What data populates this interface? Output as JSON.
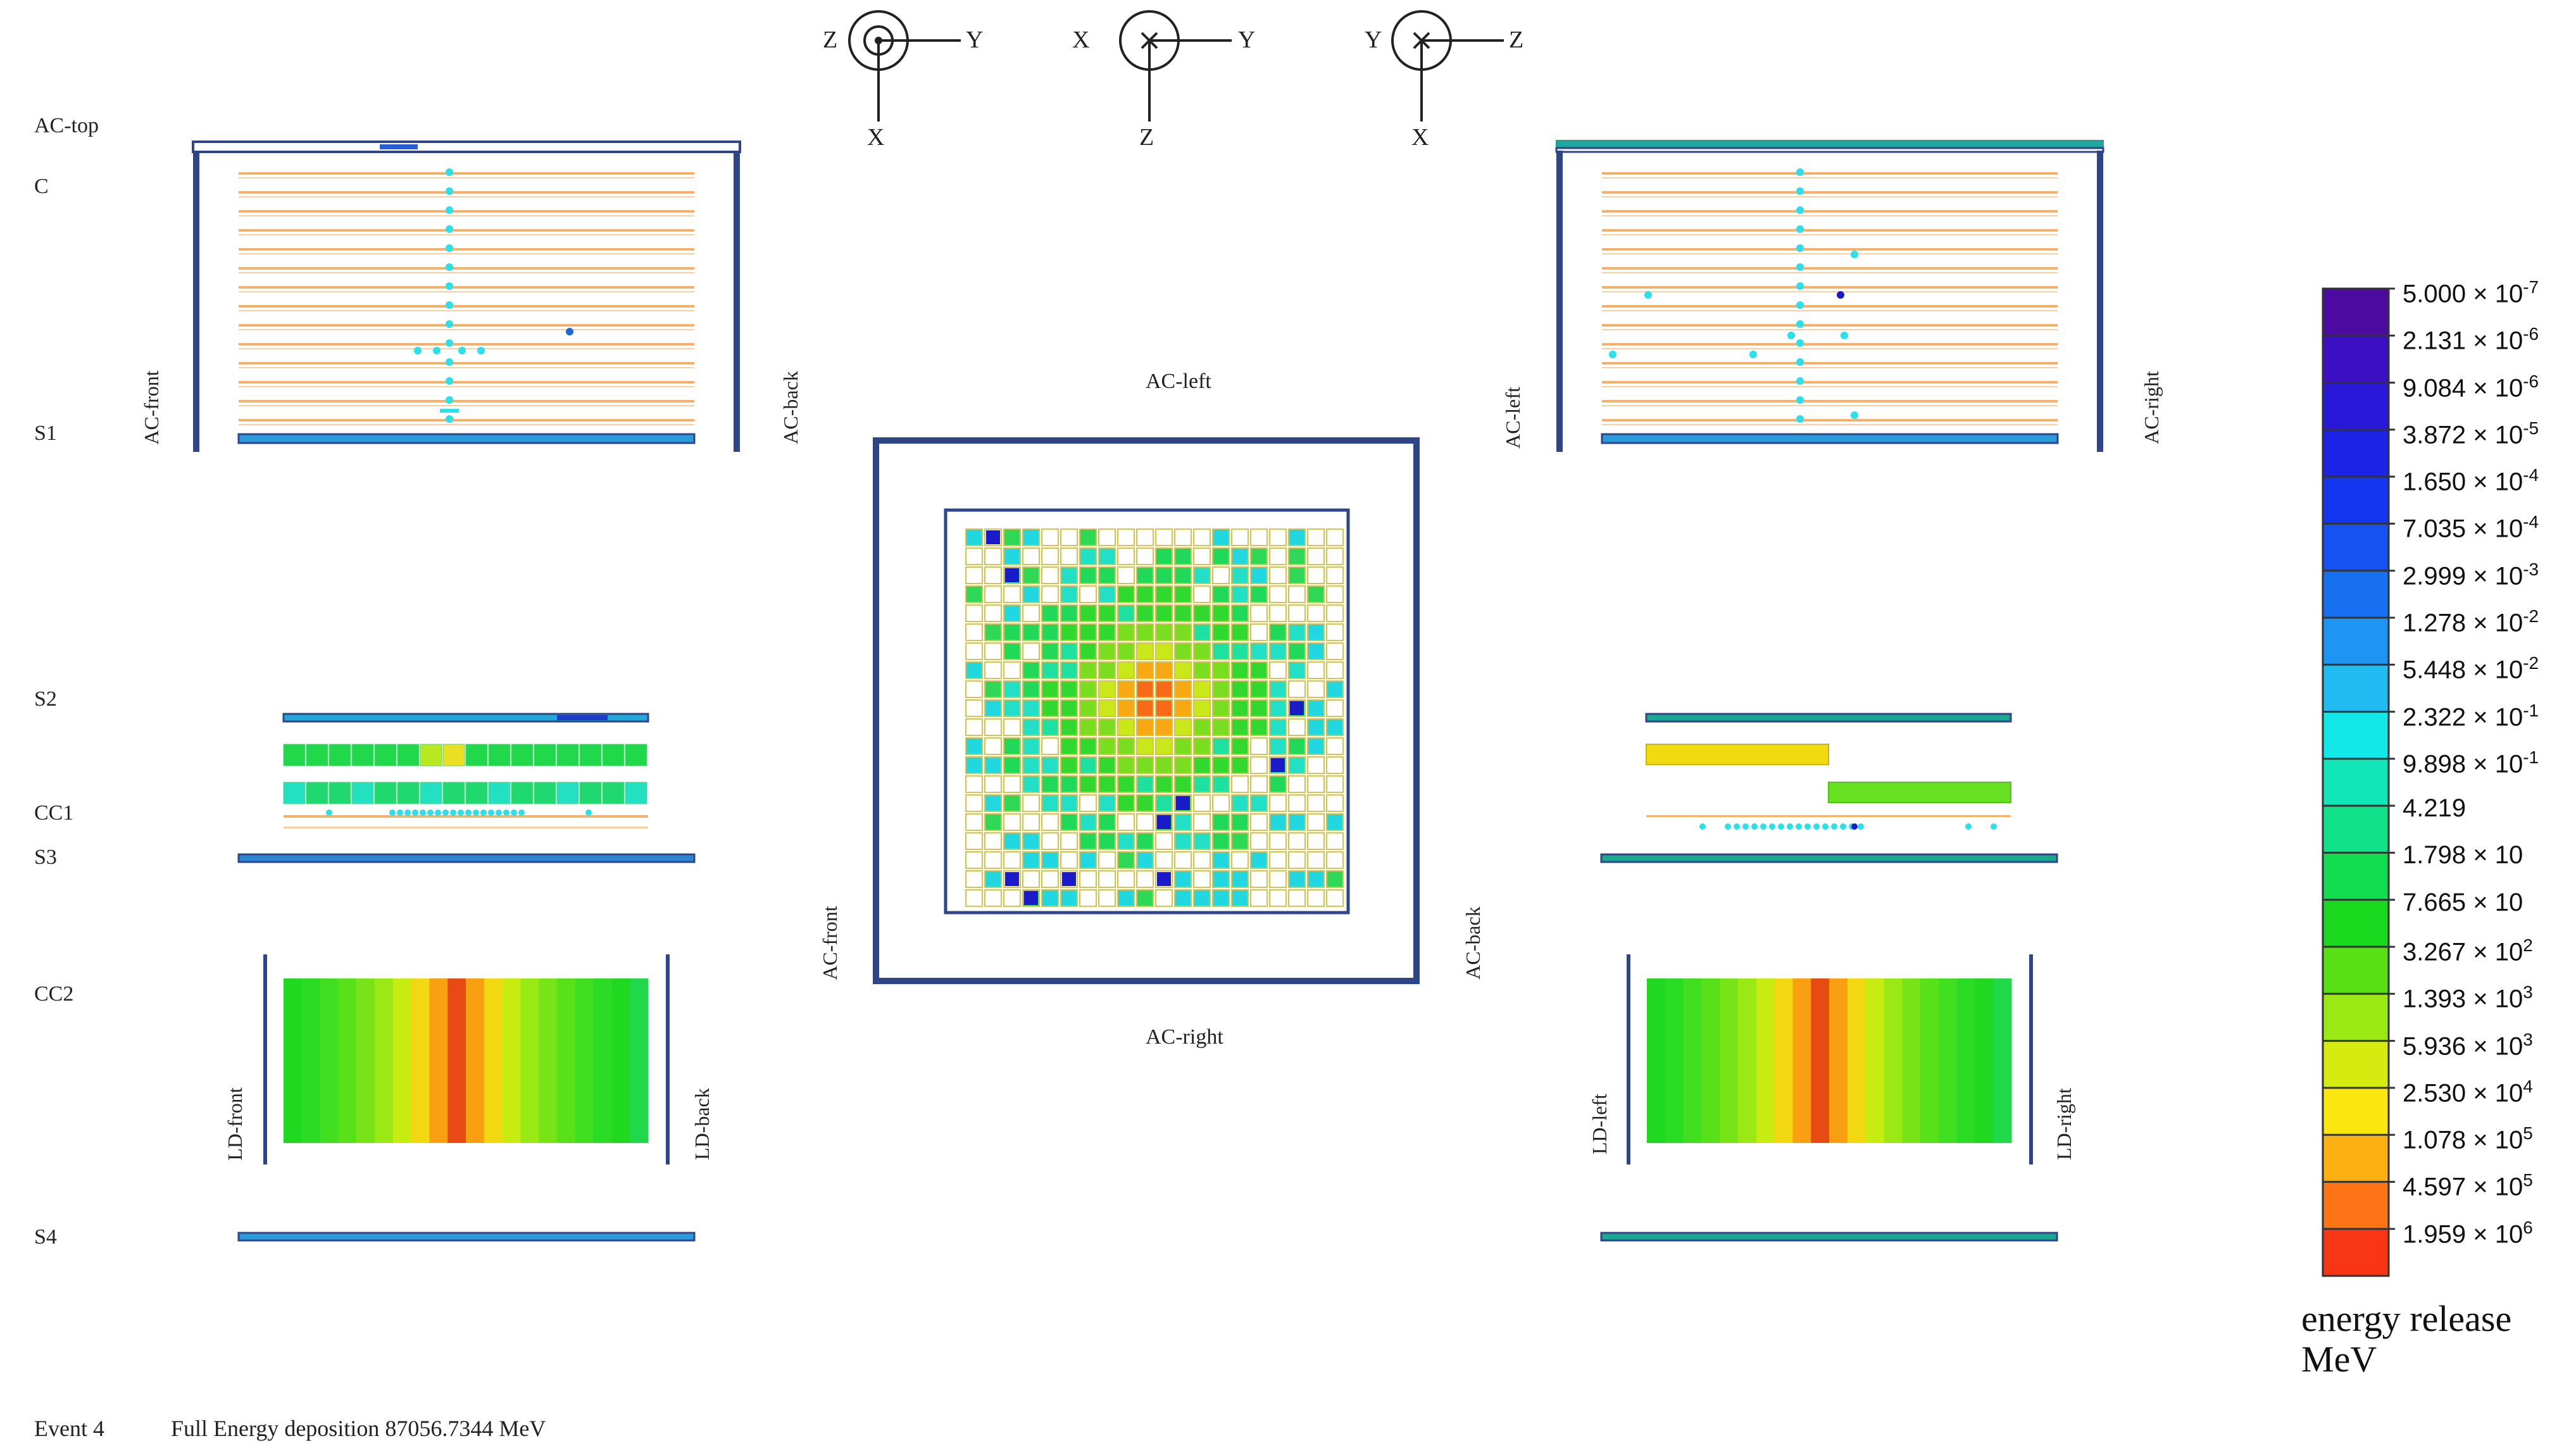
{
  "layer_labels": {
    "ac_top": "AC-top",
    "c": "C",
    "s1": "S1",
    "s2": "S2",
    "cc1": "CC1",
    "s3": "S3",
    "cc2": "CC2",
    "s4": "S4"
  },
  "side_labels": {
    "ac_front": "AC-front",
    "ac_back": "AC-back",
    "ac_left": "AC-left",
    "ac_right": "AC-right",
    "ld_front": "LD-front",
    "ld_back": "LD-back",
    "ld_left": "LD-left",
    "ld_right": "LD-right"
  },
  "axes": [
    {
      "left": "Z",
      "right": "Y",
      "down": "X",
      "symbol": "dot"
    },
    {
      "left": "X",
      "right": "Y",
      "down": "Z",
      "symbol": "cross"
    },
    {
      "left": "Y",
      "right": "Z",
      "down": "X",
      "symbol": "cross"
    }
  ],
  "legend": {
    "title_line1": "energy release",
    "title_line2": "MeV",
    "entries": [
      {
        "mantissa": "5.000",
        "exp": "-7",
        "color": "#4b0aa0"
      },
      {
        "mantissa": "2.131",
        "exp": "-6",
        "color": "#3a10c2"
      },
      {
        "mantissa": "9.084",
        "exp": "-6",
        "color": "#2a18d8"
      },
      {
        "mantissa": "3.872",
        "exp": "-5",
        "color": "#1c22e6"
      },
      {
        "mantissa": "1.650",
        "exp": "-4",
        "color": "#1436f0"
      },
      {
        "mantissa": "7.035",
        "exp": "-4",
        "color": "#1452f2"
      },
      {
        "mantissa": "2.999",
        "exp": "-3",
        "color": "#1670f0"
      },
      {
        "mantissa": "1.278",
        "exp": "-2",
        "color": "#1c96f2"
      },
      {
        "mantissa": "5.448",
        "exp": "-2",
        "color": "#22bcf2"
      },
      {
        "mantissa": "2.322",
        "exp": "-1",
        "color": "#12e8e8"
      },
      {
        "mantissa": "9.898",
        "exp": "-1",
        "color": "#10e6b8"
      },
      {
        "mantissa": "4.219",
        "exp": "",
        "color": "#10e088"
      },
      {
        "mantissa": "1.798",
        "exp": "x10",
        "color": "#12dc50"
      },
      {
        "mantissa": "7.665",
        "exp": "x10",
        "color": "#1ad81e"
      },
      {
        "mantissa": "3.267",
        "exp": "2",
        "color": "#58e014"
      },
      {
        "mantissa": "1.393",
        "exp": "3",
        "color": "#9ae814"
      },
      {
        "mantissa": "5.936",
        "exp": "3",
        "color": "#d6ec10"
      },
      {
        "mantissa": "2.530",
        "exp": "4",
        "color": "#fce610"
      },
      {
        "mantissa": "1.078",
        "exp": "5",
        "color": "#fcb012"
      },
      {
        "mantissa": "4.597",
        "exp": "5",
        "color": "#fc7416"
      },
      {
        "mantissa": "1.959",
        "exp": "6",
        "color": "#f83616"
      }
    ]
  },
  "footer": {
    "event": "Event 4",
    "energy": "Full Energy deposition  87056.7344 MeV"
  },
  "colors": {
    "frame": "#2e4587",
    "strip": "#f6b06a",
    "hit": "#2be0e8",
    "hit_dark": "#1a1ac8",
    "grid_line": "#d6c44a"
  }
}
